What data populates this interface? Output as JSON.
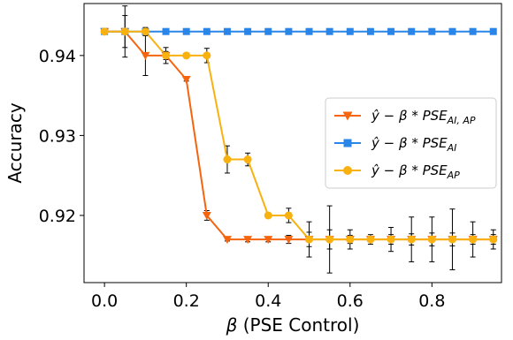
{
  "chart_data": {
    "type": "line",
    "xlabel_symbol": "β",
    "xlabel_rest": " (PSE Control)",
    "ylabel": "Accuracy",
    "xlim": [
      -0.05,
      0.97
    ],
    "ylim": [
      0.9116,
      0.9465
    ],
    "xticks": [
      0.0,
      0.2,
      0.4,
      0.6,
      0.8
    ],
    "xtick_labels": [
      "0.0",
      "0.2",
      "0.4",
      "0.6",
      "0.8"
    ],
    "yticks": [
      0.92,
      0.93,
      0.94
    ],
    "ytick_labels": [
      "0.92",
      "0.93",
      "0.94"
    ],
    "grid": false,
    "legend_position": "center-right",
    "x": [
      0.0,
      0.05,
      0.1,
      0.15,
      0.2,
      0.25,
      0.3,
      0.35,
      0.4,
      0.45,
      0.5,
      0.55,
      0.6,
      0.65,
      0.7,
      0.75,
      0.8,
      0.85,
      0.9,
      0.95
    ],
    "series": [
      {
        "legend_parts": [
          "ŷ − β * PSE",
          "AI, AP"
        ],
        "color": "#f5650f",
        "marker": "triangle-down",
        "values": [
          0.943,
          0.943,
          0.94,
          0.94,
          0.937,
          0.92,
          0.917,
          0.917,
          0.917,
          0.917,
          0.917,
          0.917,
          0.917,
          0.917,
          0.917,
          0.917,
          0.917,
          0.917,
          0.917,
          0.917
        ],
        "errors": [
          0.0003,
          0.002,
          0.0025,
          0.0005,
          0.0002,
          0.0006,
          0.0002,
          0.0003,
          0.0003,
          0.0005,
          0.0009,
          0.0012,
          0.0005,
          0.0003,
          0.0006,
          0.0007,
          0.0008,
          0.0008,
          0.0006,
          0.0006
        ]
      },
      {
        "legend_parts": [
          "ŷ − β * PSE",
          "AI"
        ],
        "color": "#2a85e8",
        "marker": "square",
        "values": [
          0.943,
          0.943,
          0.943,
          0.943,
          0.943,
          0.943,
          0.943,
          0.943,
          0.943,
          0.943,
          0.943,
          0.943,
          0.943,
          0.943,
          0.943,
          0.943,
          0.943,
          0.943,
          0.943,
          0.943
        ],
        "errors": [
          0.0002,
          0.0002,
          0.0002,
          0.0002,
          0.0002,
          0.0002,
          0.0002,
          0.0002,
          0.0002,
          0.0002,
          0.0002,
          0.0002,
          0.0002,
          0.0002,
          0.0002,
          0.0002,
          0.0002,
          0.0002,
          0.0002,
          0.0002
        ]
      },
      {
        "legend_parts": [
          "ŷ − β * PSE",
          "AP"
        ],
        "color": "#f9b10f",
        "marker": "circle",
        "values": [
          0.943,
          0.943,
          0.943,
          0.94,
          0.94,
          0.94,
          0.927,
          0.927,
          0.92,
          0.92,
          0.917,
          0.917,
          0.917,
          0.917,
          0.917,
          0.917,
          0.917,
          0.917,
          0.917,
          0.917
        ],
        "errors": [
          0.0003,
          0.0032,
          0.0005,
          0.001,
          0.0003,
          0.0009,
          0.0017,
          0.0008,
          0.0003,
          0.0009,
          0.0022,
          0.0042,
          0.0012,
          0.0006,
          0.0015,
          0.0028,
          0.0028,
          0.0038,
          0.0022,
          0.0012
        ]
      }
    ]
  }
}
